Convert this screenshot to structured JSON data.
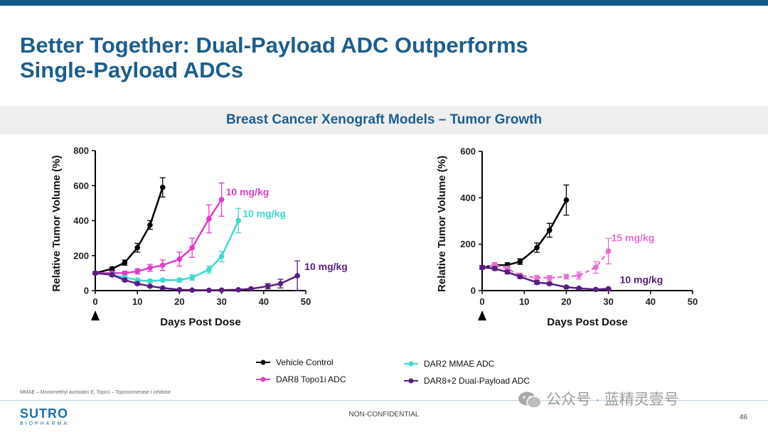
{
  "title_line1": "Better Together: Dual-Payload ADC Outperforms",
  "title_line2": "Single-Payload ADCs",
  "subtitle": "Breast Cancer Xenograft Models – Tumor Growth",
  "colors": {
    "brand": "#1b5e8e",
    "vehicle": "#000000",
    "topo1": "#e03cc8",
    "mmae": "#3ed8d0",
    "dual": "#5a1d80"
  },
  "chart_data": [
    {
      "type": "line",
      "xlabel": "Days Post Dose",
      "ylabel": "Relative Tumor  Volume (%)",
      "xlim": [
        0,
        50
      ],
      "ylim": [
        0,
        800
      ],
      "xticks": [
        0,
        10,
        20,
        30,
        40,
        50
      ],
      "yticks": [
        0,
        200,
        400,
        600,
        800
      ],
      "dosing_marker_day": 0,
      "series": [
        {
          "name": "Vehicle Control",
          "color": "#000000",
          "dashed": false,
          "x": [
            0,
            4,
            7,
            10,
            13,
            16
          ],
          "y": [
            100,
            125,
            160,
            245,
            375,
            590
          ],
          "err": [
            8,
            10,
            15,
            25,
            25,
            55
          ]
        },
        {
          "name": "DAR8 Topo1i ADC",
          "color": "#e03cc8",
          "dashed": false,
          "x": [
            0,
            4,
            7,
            10,
            13,
            16,
            20,
            23,
            27,
            30
          ],
          "y": [
            100,
            100,
            100,
            110,
            130,
            145,
            180,
            245,
            410,
            520
          ],
          "err": [
            8,
            10,
            10,
            15,
            20,
            30,
            40,
            55,
            80,
            95
          ]
        },
        {
          "name": "DAR2 MMAE ADC",
          "color": "#3ed8d0",
          "dashed": false,
          "x": [
            0,
            4,
            7,
            10,
            13,
            16,
            20,
            23,
            27,
            30,
            34
          ],
          "y": [
            100,
            90,
            75,
            60,
            55,
            60,
            60,
            75,
            120,
            195,
            400
          ],
          "err": [
            8,
            8,
            8,
            8,
            8,
            8,
            10,
            15,
            20,
            30,
            70
          ]
        },
        {
          "name": "DAR8+2 Dual-Payload ADC",
          "color": "#5a1d80",
          "dashed": false,
          "x": [
            0,
            4,
            7,
            10,
            13,
            16,
            20,
            23,
            27,
            30,
            34,
            37,
            41,
            44,
            48
          ],
          "y": [
            100,
            90,
            60,
            40,
            25,
            15,
            5,
            3,
            2,
            3,
            5,
            10,
            25,
            40,
            85
          ],
          "err": [
            8,
            8,
            8,
            8,
            5,
            5,
            3,
            2,
            2,
            2,
            3,
            5,
            15,
            25,
            85
          ]
        }
      ],
      "annotations": [
        {
          "text": "10 mg/kg",
          "series": "DAR8 Topo1i ADC"
        },
        {
          "text": "10 mg/kg",
          "series": "DAR2 MMAE ADC"
        },
        {
          "text": "10 mg/kg",
          "series": "DAR8+2 Dual-Payload ADC"
        }
      ]
    },
    {
      "type": "line",
      "xlabel": "Days Post Dose",
      "ylabel": "Relative Tumor  Volume (%)",
      "xlim": [
        0,
        50
      ],
      "ylim": [
        0,
        600
      ],
      "xticks": [
        0,
        10,
        20,
        30,
        40,
        50
      ],
      "yticks": [
        0,
        200,
        400,
        600
      ],
      "dosing_marker_day": 0,
      "series": [
        {
          "name": "Vehicle Control",
          "color": "#000000",
          "dashed": false,
          "x": [
            0,
            3,
            6,
            9,
            13,
            16,
            20
          ],
          "y": [
            100,
            110,
            110,
            125,
            185,
            260,
            390
          ],
          "err": [
            8,
            10,
            10,
            12,
            20,
            30,
            65
          ]
        },
        {
          "name": "DAR8 Topo1i ADC",
          "color": "#e86fd2",
          "dashed": true,
          "x": [
            0,
            3,
            6,
            9,
            13,
            16,
            20,
            23,
            27,
            30
          ],
          "y": [
            100,
            110,
            95,
            65,
            55,
            55,
            60,
            65,
            100,
            170
          ],
          "err": [
            8,
            10,
            10,
            10,
            10,
            10,
            10,
            15,
            25,
            55
          ]
        },
        {
          "name": "DAR8+2 Dual-Payload ADC",
          "color": "#5a1d80",
          "dashed": false,
          "x": [
            0,
            3,
            6,
            9,
            13,
            16,
            20,
            23,
            27,
            30
          ],
          "y": [
            100,
            95,
            80,
            60,
            35,
            30,
            15,
            10,
            5,
            8
          ],
          "err": [
            8,
            8,
            8,
            8,
            8,
            6,
            5,
            4,
            3,
            3
          ]
        }
      ],
      "annotations": [
        {
          "text": "15 mg/kg",
          "series": "DAR8 Topo1i ADC"
        },
        {
          "text": "10 mg/kg",
          "series": "DAR8+2 Dual-Payload ADC"
        }
      ]
    }
  ],
  "legend": [
    {
      "label": "Vehicle Control",
      "color": "#000000"
    },
    {
      "label": "DAR2 MMAE ADC",
      "color": "#3ed8d0"
    },
    {
      "label": "DAR8 Topo1i ADC",
      "color": "#e03cc8"
    },
    {
      "label": "DAR8+2 Dual-Payload ADC",
      "color": "#5a1d80"
    }
  ],
  "footnote": "MMAE – Monomethyl auristatin E; Topo1 – Topoisomerase I inhibitor",
  "logo_main": "SUTRO",
  "logo_sub": "BIOPHARMA",
  "confidential": "NON-CONFIDENTIAL",
  "page_number": "46",
  "watermark": "公众号 · 蓝精灵壹号"
}
